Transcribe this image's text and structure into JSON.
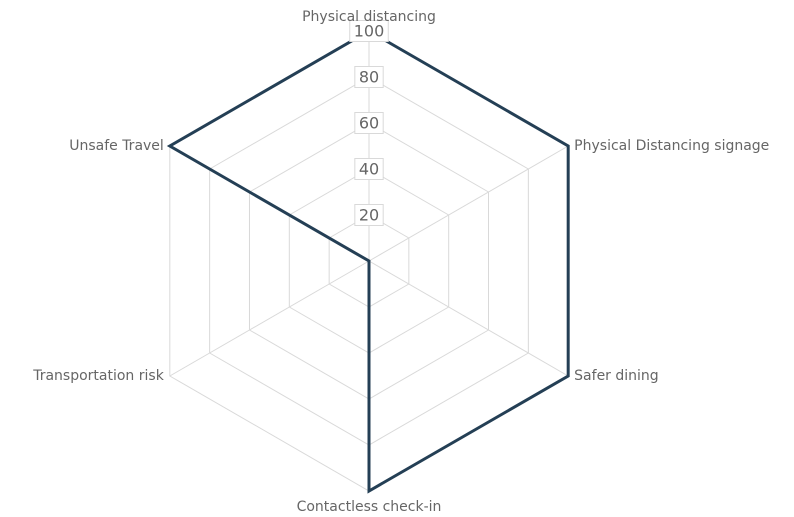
{
  "chart_data": {
    "type": "radar",
    "axes": [
      "Physical distancing",
      "Physical Distancing signage",
      "Safer dining",
      "Contactless check-in",
      "Transportation risk",
      "Unsafe Travel"
    ],
    "ticks": [
      "20",
      "40",
      "60",
      "80",
      "100"
    ],
    "rlim": [
      0,
      100
    ],
    "grid": true,
    "legend": "none",
    "series": [
      {
        "values": [
          100,
          100,
          100,
          100,
          0,
          100
        ],
        "color": "#243f55"
      }
    ]
  }
}
